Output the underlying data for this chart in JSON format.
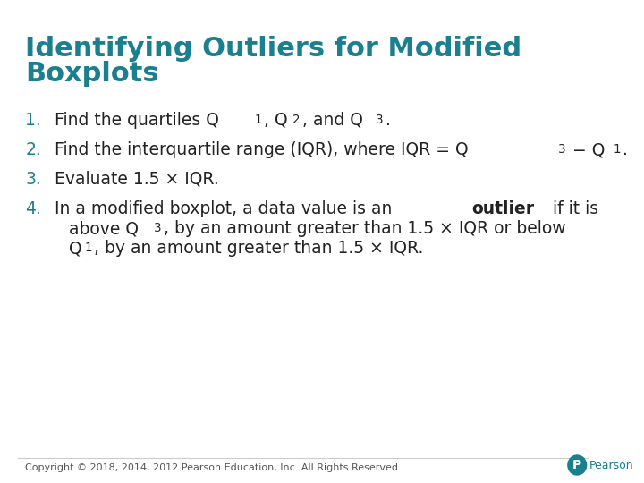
{
  "title_line1": "Identifying Outliers for Modified",
  "title_line2": "Boxplots",
  "title_color": "#1a7f8e",
  "background_color": "#ffffff",
  "items": [
    {
      "number": "1.",
      "number_color": "#1a7f8e",
      "text_parts": [
        {
          "text": "Find the quartiles Q",
          "bold": false
        },
        {
          "text": "1",
          "bold": false,
          "sub": true
        },
        {
          "text": ", Q",
          "bold": false
        },
        {
          "text": "2",
          "bold": false,
          "sub": true
        },
        {
          "text": ", and Q",
          "bold": false
        },
        {
          "text": "3",
          "bold": false,
          "sub": true
        },
        {
          "text": ".",
          "bold": false
        }
      ]
    },
    {
      "number": "2.",
      "number_color": "#1a7f8e",
      "text_parts": [
        {
          "text": "Find the interquartile range (IQR), where IQR = Q",
          "bold": false
        },
        {
          "text": "3",
          "bold": false,
          "sub": true
        },
        {
          "text": " − Q",
          "bold": false
        },
        {
          "text": "1",
          "bold": false,
          "sub": true
        },
        {
          "text": ".",
          "bold": false
        }
      ]
    },
    {
      "number": "3.",
      "number_color": "#1a7f8e",
      "text_parts": [
        {
          "text": "Evaluate 1.5 × IQR.",
          "bold": false
        }
      ]
    },
    {
      "number": "4.",
      "number_color": "#1a7f8e",
      "text_parts_line1": [
        {
          "text": "In a modified boxplot, a data value is an ",
          "bold": false
        },
        {
          "text": "outlier",
          "bold": true
        },
        {
          "text": " if it is",
          "bold": false
        }
      ],
      "text_parts_line2": [
        {
          "text": "above Q",
          "bold": false
        },
        {
          "text": "3",
          "bold": false,
          "sub": true
        },
        {
          "text": ", by an amount greater than 1.5 × IQR or below",
          "bold": false
        }
      ],
      "text_parts_line3": [
        {
          "text": "Q",
          "bold": false
        },
        {
          "text": "1",
          "bold": false,
          "sub": true
        },
        {
          "text": ", by an amount greater than 1.5 × IQR.",
          "bold": false
        }
      ]
    }
  ],
  "copyright_text": "Copyright © 2018, 2014, 2012 Pearson Education, Inc. All Rights Reserved",
  "copyright_color": "#555555",
  "pearson_color": "#1a7f8e"
}
